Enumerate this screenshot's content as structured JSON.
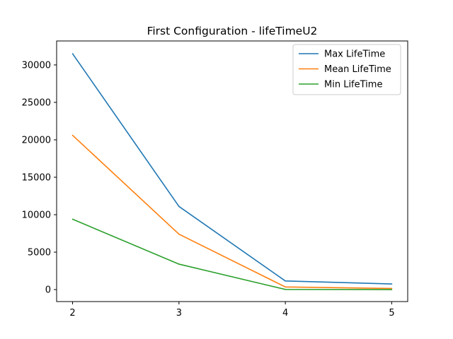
{
  "chart_data": {
    "type": "line",
    "title": "First Configuration - lifeTimeU2",
    "xlabel": "",
    "ylabel": "",
    "x": [
      2,
      3,
      4,
      5
    ],
    "xticks": [
      "2",
      "3",
      "4",
      "5"
    ],
    "yticks": [
      "0",
      "5000",
      "10000",
      "15000",
      "20000",
      "25000",
      "30000"
    ],
    "xlim": [
      1.85,
      5.15
    ],
    "ylim": [
      -1600,
      33200
    ],
    "grid": false,
    "legend_position": "top-right",
    "series": [
      {
        "name": "Max LifeTime",
        "color": "#1f77b4",
        "values": [
          31500,
          11100,
          1150,
          750
        ]
      },
      {
        "name": "Mean LifeTime",
        "color": "#ff7f0e",
        "values": [
          20600,
          7400,
          350,
          150
        ]
      },
      {
        "name": "Min LifeTime",
        "color": "#2ca02c",
        "values": [
          9400,
          3400,
          20,
          0
        ]
      }
    ]
  }
}
